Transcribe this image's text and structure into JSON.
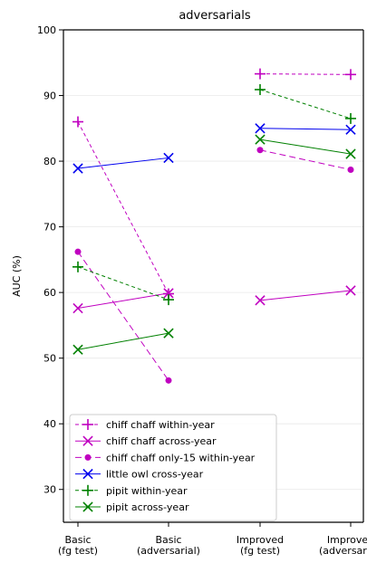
{
  "chart_data": {
    "type": "line",
    "title": "adversarials",
    "ylabel": "AUC (%)",
    "xlabel": "",
    "ylim": [
      25,
      100
    ],
    "yticks": [
      30,
      40,
      50,
      60,
      70,
      80,
      90,
      100
    ],
    "grid": "horizontal",
    "legend_placement": "lower-left",
    "categories": [
      [
        "Basic",
        "(fg test)"
      ],
      [
        "Basic",
        "(adversarial)"
      ],
      [
        "Improved",
        "(fg test)"
      ],
      [
        "Improved",
        "(adversarial)"
      ]
    ],
    "series": [
      {
        "name": "chiff chaff within-year",
        "color": "#c000c0",
        "marker": "plus",
        "dash": "dashed",
        "segments": [
          [
            [
              0,
              86.0
            ],
            [
              1,
              59.8
            ]
          ],
          [
            [
              2,
              93.3
            ],
            [
              3,
              93.2
            ]
          ]
        ]
      },
      {
        "name": "chiff chaff across-year",
        "color": "#c000c0",
        "marker": "x",
        "dash": "solid",
        "segments": [
          [
            [
              0,
              57.6
            ],
            [
              1,
              59.9
            ]
          ],
          [
            [
              2,
              58.8
            ],
            [
              3,
              60.3
            ]
          ]
        ]
      },
      {
        "name": "chiff chaff only-15 within-year",
        "color": "#c000c0",
        "marker": "dot",
        "dash": "longdash",
        "segments": [
          [
            [
              0,
              66.2
            ],
            [
              1,
              46.6
            ]
          ],
          [
            [
              2,
              81.7
            ],
            [
              3,
              78.7
            ]
          ]
        ]
      },
      {
        "name": "little owl cross-year",
        "color": "#0000ee",
        "marker": "x",
        "dash": "solid",
        "segments": [
          [
            [
              0,
              78.9
            ],
            [
              1,
              80.5
            ]
          ],
          [
            [
              2,
              85.0
            ],
            [
              3,
              84.8
            ]
          ]
        ]
      },
      {
        "name": "pipit within-year",
        "color": "#008000",
        "marker": "plus",
        "dash": "dashed",
        "segments": [
          [
            [
              0,
              63.9
            ],
            [
              1,
              58.9
            ]
          ],
          [
            [
              2,
              90.9
            ],
            [
              3,
              86.5
            ]
          ]
        ]
      },
      {
        "name": "pipit across-year",
        "color": "#008000",
        "marker": "x",
        "dash": "solid",
        "segments": [
          [
            [
              0,
              51.3
            ],
            [
              1,
              53.8
            ]
          ],
          [
            [
              2,
              83.3
            ],
            [
              3,
              81.1
            ]
          ]
        ]
      }
    ]
  }
}
